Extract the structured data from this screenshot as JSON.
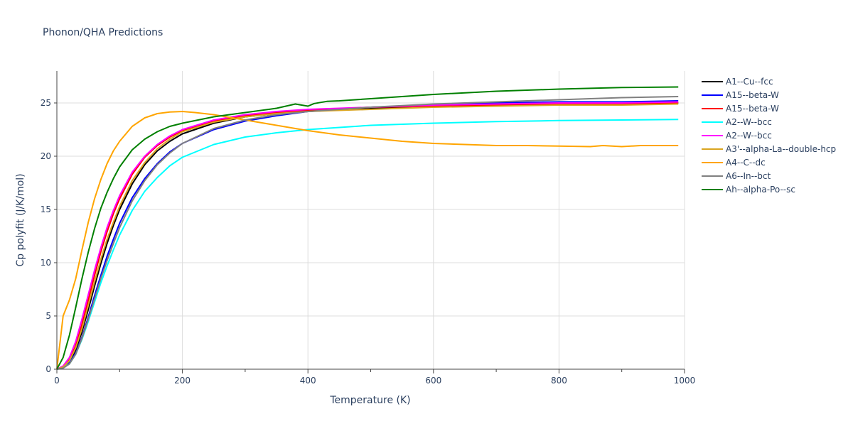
{
  "chart_data": {
    "type": "line",
    "title": "Phonon/QHA Predictions",
    "xlabel": "Temperature (K)",
    "ylabel": "Cp polyfit (J/K/mol)",
    "xlim": [
      0,
      1000
    ],
    "ylim": [
      0,
      28
    ],
    "xticks": [
      0,
      200,
      400,
      600,
      800,
      1000
    ],
    "yticks": [
      0,
      5,
      10,
      15,
      20,
      25
    ],
    "grid": true,
    "legend_position": "right",
    "series": [
      {
        "name": "A1--Cu--fcc",
        "color": "#000000",
        "x": [
          0,
          10,
          20,
          30,
          40,
          50,
          60,
          70,
          80,
          90,
          100,
          120,
          140,
          160,
          180,
          200,
          250,
          300,
          350,
          400,
          500,
          600,
          700,
          800,
          900,
          990
        ],
        "y": [
          0,
          0.2,
          0.7,
          1.8,
          3.5,
          5.6,
          7.8,
          9.9,
          11.8,
          13.5,
          15.0,
          17.4,
          19.2,
          20.5,
          21.4,
          22.1,
          23.1,
          23.7,
          24.0,
          24.2,
          24.5,
          24.7,
          24.8,
          24.9,
          24.9,
          25.0
        ]
      },
      {
        "name": "A15--beta-W",
        "color": "#0000ff",
        "x": [
          0,
          10,
          20,
          30,
          40,
          50,
          60,
          70,
          80,
          90,
          100,
          120,
          140,
          160,
          180,
          200,
          250,
          300,
          350,
          400,
          500,
          600,
          700,
          800,
          900,
          990
        ],
        "y": [
          0,
          0.15,
          0.6,
          1.5,
          3.0,
          4.9,
          6.9,
          8.8,
          10.6,
          12.2,
          13.7,
          16.1,
          17.9,
          19.3,
          20.4,
          21.2,
          22.5,
          23.3,
          23.8,
          24.2,
          24.6,
          24.8,
          25.0,
          25.1,
          25.1,
          25.2
        ]
      },
      {
        "name": "A15--beta-W",
        "color": "#ff0000",
        "x": [
          0,
          10,
          20,
          30,
          40,
          50,
          60,
          70,
          80,
          90,
          100,
          120,
          140,
          160,
          180,
          200,
          250,
          300,
          350,
          400,
          500,
          600,
          700,
          800,
          900,
          990
        ],
        "y": [
          0,
          0.25,
          0.9,
          2.2,
          4.2,
          6.5,
          8.8,
          11.0,
          12.9,
          14.6,
          16.0,
          18.3,
          19.9,
          21.0,
          21.8,
          22.4,
          23.3,
          23.8,
          24.1,
          24.3,
          24.6,
          24.7,
          24.8,
          24.9,
          24.9,
          25.0
        ]
      },
      {
        "name": "A2--W--bcc",
        "color": "#00ffff",
        "x": [
          0,
          10,
          20,
          30,
          40,
          50,
          60,
          70,
          80,
          90,
          100,
          120,
          140,
          160,
          180,
          200,
          250,
          300,
          350,
          400,
          500,
          600,
          700,
          800,
          900,
          990
        ],
        "y": [
          0,
          0.15,
          0.5,
          1.4,
          2.8,
          4.5,
          6.3,
          8.1,
          9.7,
          11.2,
          12.6,
          14.9,
          16.7,
          18.0,
          19.1,
          19.9,
          21.1,
          21.8,
          22.2,
          22.5,
          22.9,
          23.1,
          23.25,
          23.35,
          23.4,
          23.45
        ]
      },
      {
        "name": "A2--W--bcc",
        "color": "#ff00ff",
        "x": [
          0,
          10,
          20,
          30,
          40,
          50,
          60,
          70,
          80,
          90,
          100,
          120,
          140,
          160,
          180,
          200,
          250,
          300,
          350,
          400,
          500,
          600,
          700,
          800,
          900,
          990
        ],
        "y": [
          0,
          0.3,
          1.1,
          2.6,
          4.7,
          7.0,
          9.3,
          11.4,
          13.3,
          14.9,
          16.3,
          18.5,
          20.0,
          21.1,
          21.9,
          22.5,
          23.4,
          23.9,
          24.2,
          24.4,
          24.6,
          24.8,
          24.9,
          25.0,
          25.0,
          25.1
        ]
      },
      {
        "name": "A3'--alpha-La--double-hcp",
        "color": "#daa520",
        "x": [
          0,
          10,
          20,
          30,
          40,
          50,
          60,
          70,
          80,
          90,
          100,
          120,
          140,
          160,
          180,
          200,
          250,
          300,
          350,
          400,
          500,
          600,
          700,
          800,
          900,
          990
        ],
        "y": [
          0,
          0.2,
          0.8,
          2.0,
          3.8,
          6.0,
          8.2,
          10.3,
          12.2,
          13.8,
          15.3,
          17.7,
          19.4,
          20.7,
          21.6,
          22.3,
          23.2,
          23.7,
          24.0,
          24.2,
          24.4,
          24.6,
          24.7,
          24.8,
          24.8,
          24.9
        ]
      },
      {
        "name": "A4--C--dc",
        "color": "#ffa500",
        "x": [
          0,
          10,
          20,
          30,
          40,
          50,
          60,
          70,
          80,
          90,
          100,
          120,
          140,
          160,
          180,
          200,
          220,
          250,
          300,
          350,
          400,
          450,
          500,
          550,
          600,
          650,
          700,
          750,
          800,
          850,
          870,
          900,
          930,
          960,
          990
        ],
        "y": [
          0,
          5.0,
          6.5,
          8.5,
          11.2,
          13.8,
          16.0,
          17.8,
          19.3,
          20.5,
          21.4,
          22.8,
          23.6,
          24.0,
          24.15,
          24.2,
          24.1,
          23.9,
          23.4,
          22.9,
          22.4,
          22.0,
          21.7,
          21.4,
          21.2,
          21.1,
          21.0,
          21.0,
          20.95,
          20.9,
          21.0,
          20.9,
          21.0,
          21.0,
          21.0
        ]
      },
      {
        "name": "A6--In--bct",
        "color": "#808080",
        "x": [
          0,
          10,
          20,
          30,
          40,
          50,
          60,
          70,
          80,
          90,
          100,
          120,
          140,
          160,
          180,
          200,
          250,
          300,
          350,
          400,
          500,
          600,
          700,
          800,
          900,
          990
        ],
        "y": [
          0,
          0.1,
          0.5,
          1.4,
          2.9,
          4.7,
          6.6,
          8.5,
          10.2,
          11.8,
          13.3,
          15.8,
          17.7,
          19.2,
          20.3,
          21.2,
          22.6,
          23.4,
          23.9,
          24.2,
          24.6,
          24.9,
          25.1,
          25.3,
          25.5,
          25.6
        ]
      },
      {
        "name": "Ah--alpha-Po--sc",
        "color": "#008000",
        "x": [
          0,
          10,
          20,
          30,
          40,
          50,
          60,
          70,
          80,
          90,
          100,
          120,
          140,
          160,
          180,
          200,
          250,
          300,
          350,
          380,
          390,
          400,
          410,
          430,
          450,
          500,
          600,
          700,
          800,
          900,
          990
        ],
        "y": [
          0,
          1.1,
          3.2,
          5.8,
          8.5,
          11.0,
          13.2,
          15.1,
          16.6,
          17.9,
          19.0,
          20.6,
          21.6,
          22.3,
          22.8,
          23.1,
          23.7,
          24.1,
          24.5,
          24.9,
          24.8,
          24.7,
          24.95,
          25.15,
          25.2,
          25.4,
          25.8,
          26.1,
          26.3,
          26.45,
          26.5
        ]
      }
    ]
  }
}
